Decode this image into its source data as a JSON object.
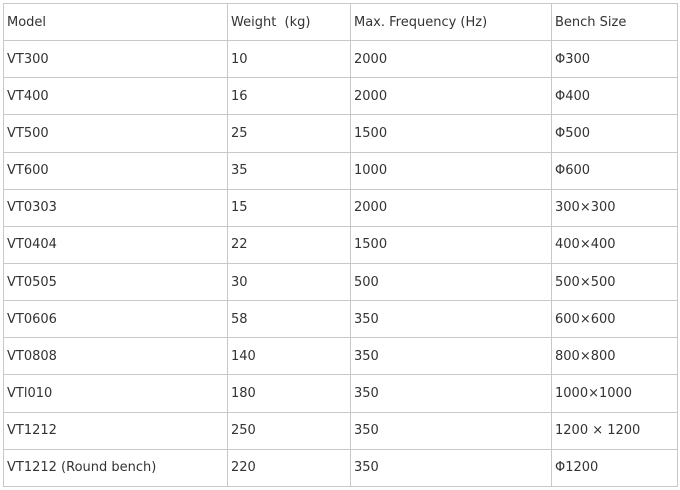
{
  "table": {
    "headers": [
      "Model",
      "Weight  (kg)",
      "Max. Frequency (Hz)",
      "Bench Size"
    ],
    "rows": [
      [
        "VT300",
        "10",
        "2000",
        "Φ300"
      ],
      [
        "VT400",
        "16",
        "2000",
        "Φ400"
      ],
      [
        "VT500",
        "25",
        "1500",
        "Φ500"
      ],
      [
        "VT600",
        "35",
        "1000",
        "Φ600"
      ],
      [
        "VT0303",
        "15",
        "2000",
        "300×300"
      ],
      [
        "VT0404",
        "22",
        "1500",
        "400×400"
      ],
      [
        "VT0505",
        "30",
        "500",
        "500×500"
      ],
      [
        "VT0606",
        "58",
        "350",
        "600×600"
      ],
      [
        "VT0808",
        "140",
        "350",
        "800×800"
      ],
      [
        "VTl010",
        "180",
        "350",
        "1000×1000"
      ],
      [
        "VT1212",
        "250",
        "350",
        "1200 × 1200"
      ],
      [
        "VT1212 (Round bench)",
        "220",
        "350",
        "Φ1200"
      ]
    ]
  }
}
